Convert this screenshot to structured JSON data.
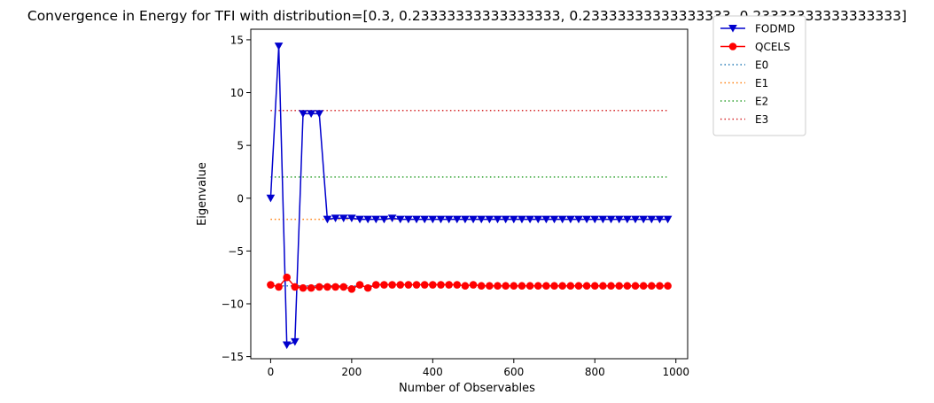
{
  "chart_data": {
    "type": "line",
    "title": "Convergence in Energy for TFI with distribution=[0.3, 0.23333333333333333, 0.23333333333333333, 0.23333333333333333]",
    "xlabel": "Number of Observables",
    "ylabel": "Eigenvalue",
    "xlim": [
      -49,
      1029
    ],
    "ylim": [
      -15.2,
      16.0
    ],
    "xticks": [
      0,
      200,
      400,
      600,
      800,
      1000
    ],
    "xtick_labels": [
      "0",
      "200",
      "400",
      "600",
      "800",
      "1000"
    ],
    "yticks": [
      -15,
      -10,
      -5,
      0,
      5,
      10,
      15
    ],
    "ytick_labels": [
      "−15",
      "−10",
      "−5",
      "0",
      "5",
      "10",
      "15"
    ],
    "grid": false,
    "legend_position": "outside top-right",
    "series": [
      {
        "name": "FODMD",
        "style": "line-marker",
        "marker": "triangle-down",
        "color": "#0000cd",
        "x": [
          0,
          20,
          40,
          60,
          80,
          100,
          120,
          140,
          160,
          180,
          200,
          220,
          240,
          260,
          280,
          300,
          320,
          340,
          360,
          380,
          400,
          420,
          440,
          460,
          480,
          500,
          520,
          540,
          560,
          580,
          600,
          620,
          640,
          660,
          680,
          700,
          720,
          740,
          760,
          780,
          800,
          820,
          840,
          860,
          880,
          900,
          920,
          940,
          960,
          980
        ],
        "y": [
          0,
          14.4,
          -13.9,
          -13.6,
          8.0,
          8.0,
          8.0,
          -2.0,
          -1.9,
          -1.9,
          -1.9,
          -2.0,
          -2.0,
          -2.0,
          -2.0,
          -1.9,
          -2.0,
          -2.0,
          -2.0,
          -2.0,
          -2.0,
          -2.0,
          -2.0,
          -2.0,
          -2.0,
          -2.0,
          -2.0,
          -2.0,
          -2.0,
          -2.0,
          -2.0,
          -2.0,
          -2.0,
          -2.0,
          -2.0,
          -2.0,
          -2.0,
          -2.0,
          -2.0,
          -2.0,
          -2.0,
          -2.0,
          -2.0,
          -2.0,
          -2.0,
          -2.0,
          -2.0,
          -2.0,
          -2.0,
          -2.0
        ]
      },
      {
        "name": "QCELS",
        "style": "line-marker",
        "marker": "circle",
        "color": "#ff0000",
        "x": [
          0,
          20,
          40,
          60,
          80,
          100,
          120,
          140,
          160,
          180,
          200,
          220,
          240,
          260,
          280,
          300,
          320,
          340,
          360,
          380,
          400,
          420,
          440,
          460,
          480,
          500,
          520,
          540,
          560,
          580,
          600,
          620,
          640,
          660,
          680,
          700,
          720,
          740,
          760,
          780,
          800,
          820,
          840,
          860,
          880,
          900,
          920,
          940,
          960,
          980
        ],
        "y": [
          -8.2,
          -8.4,
          -7.5,
          -8.4,
          -8.5,
          -8.5,
          -8.4,
          -8.4,
          -8.4,
          -8.4,
          -8.6,
          -8.2,
          -8.5,
          -8.2,
          -8.2,
          -8.2,
          -8.2,
          -8.2,
          -8.2,
          -8.2,
          -8.2,
          -8.2,
          -8.2,
          -8.2,
          -8.3,
          -8.2,
          -8.3,
          -8.3,
          -8.3,
          -8.3,
          -8.3,
          -8.3,
          -8.3,
          -8.3,
          -8.3,
          -8.3,
          -8.3,
          -8.3,
          -8.3,
          -8.3,
          -8.3,
          -8.3,
          -8.3,
          -8.3,
          -8.3,
          -8.3,
          -8.3,
          -8.3,
          -8.3,
          -8.3
        ]
      },
      {
        "name": "E0",
        "style": "dotted",
        "color": "#1f77b4",
        "x": [
          0,
          980
        ],
        "y": [
          -8.3,
          -8.3
        ]
      },
      {
        "name": "E1",
        "style": "dotted",
        "color": "#ff7f0e",
        "x": [
          0,
          980
        ],
        "y": [
          -2.0,
          -2.0
        ]
      },
      {
        "name": "E2",
        "style": "dotted",
        "color": "#2ca02c",
        "x": [
          0,
          980
        ],
        "y": [
          2.0,
          2.0
        ]
      },
      {
        "name": "E3",
        "style": "dotted",
        "color": "#d62728",
        "x": [
          0,
          980
        ],
        "y": [
          8.3,
          8.3
        ]
      }
    ]
  }
}
